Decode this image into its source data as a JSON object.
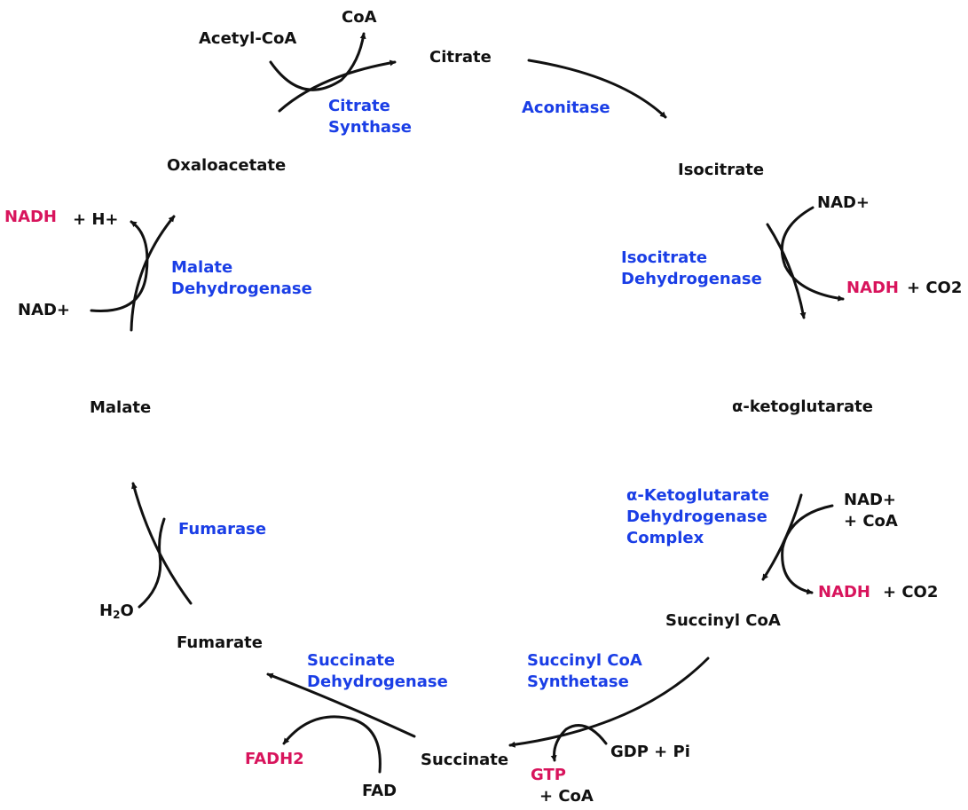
{
  "colors": {
    "metabolite": "#111111",
    "enzyme": "#1a3ee6",
    "product": "#d8145c",
    "arrow": "#111111"
  },
  "metabolites": {
    "acetyl_coa": "Acetyl-CoA",
    "coa_top": "CoA",
    "citrate": "Citrate",
    "isocitrate": "Isocitrate",
    "alpha_ketoglutarate": "α-ketoglutarate",
    "succinyl_coa": "Succinyl CoA",
    "succinate": "Succinate",
    "fumarate": "Fumarate",
    "malate": "Malate",
    "oxaloacetate": "Oxaloacetate"
  },
  "enzymes": {
    "citrate_synthase": [
      "Citrate",
      "Synthase"
    ],
    "aconitase": [
      "Aconitase"
    ],
    "isocitrate_dh": [
      "Isocitrate",
      "Dehydrogenase"
    ],
    "akg_dh": [
      "α-Ketoglutarate",
      "Dehydrogenase",
      "Complex"
    ],
    "succinyl_coa_synthetase": [
      "Succinyl CoA",
      "Synthetase"
    ],
    "succinate_dh": [
      "Succinate",
      "Dehydrogenase"
    ],
    "fumarase": [
      "Fumarase"
    ],
    "malate_dh": [
      "Malate",
      "Dehydrogenase"
    ]
  },
  "cofactors": {
    "isocitrate_in": "NAD+",
    "isocitrate_out_product": "NADH",
    "isocitrate_out_extra": "+ CO2",
    "akg_in_1": "NAD+",
    "akg_in_2": "+ CoA",
    "akg_out_product": "NADH",
    "akg_out_extra": "+ CO2",
    "scs_in": "GDP + Pi",
    "scs_out_product": "GTP",
    "scs_out_extra": "+ CoA",
    "sdh_in": "FAD",
    "sdh_out_product": "FADH2",
    "fumarase_in": "H",
    "fumarase_in_sub": "2",
    "fumarase_in_tail": "O",
    "mdh_in": "NAD+",
    "mdh_out_product": "NADH",
    "mdh_out_extra": "+ H+"
  }
}
